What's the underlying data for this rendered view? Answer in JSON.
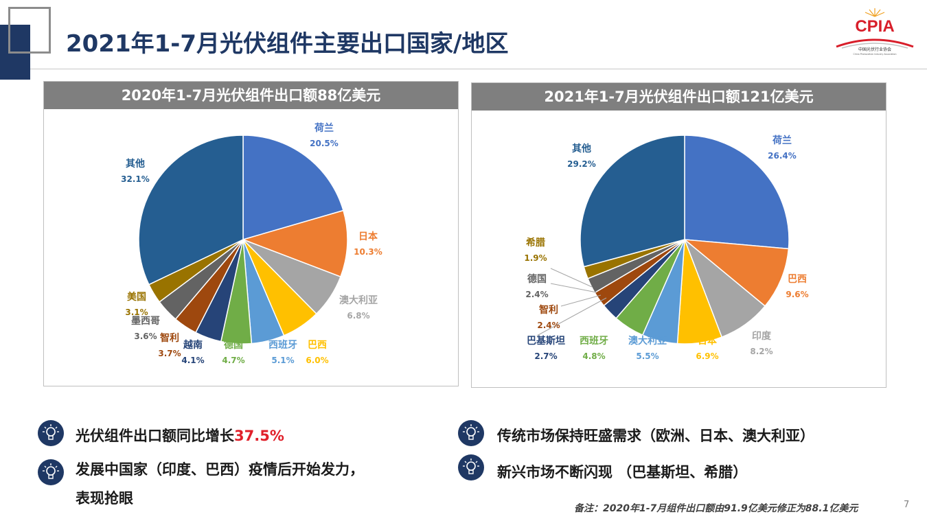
{
  "page": {
    "title": "2021年1-7月光伏组件主要出口国家/地区",
    "logo_text": "CPIA",
    "logo_sub": "中国光伏行业协会",
    "logo_sub_en": "China Photovoltaic Industry Association",
    "page_number": "7",
    "note": "备注：2020年1-7月组件出口额由91.9亿美元修正为88.1亿美元"
  },
  "bullets": [
    {
      "text": "光伏组件出口额同比增长",
      "highlight": "37.5%"
    },
    {
      "text": "发展中国家（印度、巴西）疫情后开始发力，",
      "line2": "表现抢眼"
    },
    {
      "text": "传统市场保持旺盛需求（欧洲、日本、澳大利亚）"
    },
    {
      "text": "新兴市场不断闪现 （巴基斯坦、希腊）"
    }
  ],
  "colors": {
    "title": "#1f3864",
    "highlight": "#e0202a",
    "panel_header": "#7f7f7f"
  },
  "chart_data": [
    {
      "type": "pie",
      "title": "2020年1-7月光伏组件出口额88亿美元",
      "categories": [
        "荷兰",
        "日本",
        "澳大利亚",
        "巴西",
        "西班牙",
        "德国",
        "越南",
        "智利",
        "墨西哥",
        "美国",
        "其他"
      ],
      "values": [
        20.5,
        10.3,
        6.8,
        6.0,
        5.1,
        4.7,
        4.1,
        3.7,
        3.6,
        3.1,
        32.1
      ],
      "value_labels": [
        "20.5%",
        "10.3%",
        "6.8%",
        "6.0%",
        "5.1%",
        "4.7%",
        "4.1%",
        "3.7%",
        "3.6%",
        "3.1%",
        "32.1%"
      ],
      "colors": [
        "#4472c4",
        "#ed7d31",
        "#a5a5a5",
        "#ffc000",
        "#5b9bd5",
        "#70ad47",
        "#264478",
        "#9e480e",
        "#636363",
        "#997300",
        "#255e91"
      ],
      "label_colors": [
        "#4472c4",
        "#ed7d31",
        "#a5a5a5",
        "#ffc000",
        "#5b9bd5",
        "#70ad47",
        "#264478",
        "#9e480e",
        "#636363",
        "#997300",
        "#255e91"
      ],
      "start_angle": 0
    },
    {
      "type": "pie",
      "title": "2021年1-7月光伏组件出口额121亿美元",
      "categories": [
        "荷兰",
        "巴西",
        "印度",
        "日本",
        "澳大利亚",
        "西班牙",
        "巴基斯坦",
        "智利",
        "德国",
        "希腊",
        "其他"
      ],
      "values": [
        26.4,
        9.6,
        8.2,
        6.9,
        5.5,
        4.8,
        2.7,
        2.4,
        2.4,
        1.9,
        29.2
      ],
      "value_labels": [
        "26.4%",
        "9.6%",
        "8.2%",
        "6.9%",
        "5.5%",
        "4.8%",
        "2.7%",
        "2.4%",
        "2.4%",
        "1.9%",
        "29.2%"
      ],
      "colors": [
        "#4472c4",
        "#ed7d31",
        "#a5a5a5",
        "#ffc000",
        "#5b9bd5",
        "#70ad47",
        "#264478",
        "#9e480e",
        "#636363",
        "#997300",
        "#255e91"
      ],
      "label_colors": [
        "#4472c4",
        "#ed7d31",
        "#a5a5a5",
        "#ffc000",
        "#5b9bd5",
        "#70ad47",
        "#264478",
        "#9e480e",
        "#636363",
        "#997300",
        "#255e91"
      ],
      "start_angle": 0
    }
  ]
}
